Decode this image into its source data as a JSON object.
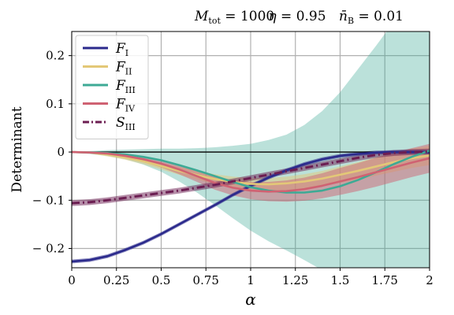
{
  "chart_data": {
    "type": "line",
    "title_parts": {
      "m_sym": "M",
      "m_sub": "tot",
      "m_eq": " = 1000",
      "eta_sym": "η",
      "eta_eq": " = 0.95",
      "n_sym": "n̄",
      "n_sub": "B",
      "n_eq": " = 0.01"
    },
    "xlabel": "α",
    "ylabel": "Determinant",
    "xlim": [
      0,
      2
    ],
    "ylim": [
      -0.24,
      0.25
    ],
    "xticks": [
      {
        "v": 0,
        "label": "0"
      },
      {
        "v": 0.25,
        "label": "0.25"
      },
      {
        "v": 0.5,
        "label": "0.5"
      },
      {
        "v": 0.75,
        "label": "0.75"
      },
      {
        "v": 1,
        "label": "1"
      },
      {
        "v": 1.25,
        "label": "1.25"
      },
      {
        "v": 1.5,
        "label": "1.5"
      },
      {
        "v": 1.75,
        "label": "1.75"
      },
      {
        "v": 2,
        "label": "2"
      }
    ],
    "yticks": [
      {
        "v": -0.2,
        "label": "− 0.2"
      },
      {
        "v": -0.1,
        "label": "− 0.1"
      },
      {
        "v": 0,
        "label": "0"
      },
      {
        "v": 0.1,
        "label": "0.1"
      },
      {
        "v": 0.2,
        "label": "0.2"
      }
    ],
    "grid": true,
    "zero_line": true,
    "legend_position": "top-left",
    "x": [
      0,
      0.1,
      0.2,
      0.3,
      0.4,
      0.5,
      0.6,
      0.7,
      0.8,
      0.9,
      1.0,
      1.1,
      1.2,
      1.3,
      1.4,
      1.5,
      1.6,
      1.7,
      1.8,
      1.9,
      2.0
    ],
    "series": [
      {
        "sym": "F",
        "sub": "I",
        "color": "#2b2a8c",
        "dash": "solid",
        "values": [
          -0.227,
          -0.224,
          -0.216,
          -0.203,
          -0.188,
          -0.17,
          -0.15,
          -0.13,
          -0.11,
          -0.089,
          -0.07,
          -0.053,
          -0.038,
          -0.025,
          -0.015,
          -0.008,
          -0.004,
          -0.001,
          0.0,
          0.0,
          0.0
        ],
        "band": 0.004
      },
      {
        "sym": "F",
        "sub": "II",
        "color": "#e3c877",
        "dash": "solid",
        "values": [
          0.0,
          -0.001,
          -0.005,
          -0.011,
          -0.019,
          -0.029,
          -0.039,
          -0.048,
          -0.056,
          -0.062,
          -0.066,
          -0.067,
          -0.065,
          -0.061,
          -0.055,
          -0.047,
          -0.039,
          -0.03,
          -0.021,
          -0.013,
          -0.007
        ],
        "band": [
          0.001,
          0.002,
          0.004,
          0.005,
          0.006,
          0.007,
          0.008,
          0.009,
          0.01,
          0.011,
          0.012,
          0.013,
          0.014,
          0.015,
          0.016,
          0.017,
          0.018,
          0.019,
          0.02,
          0.02,
          0.02
        ]
      },
      {
        "sym": "F",
        "sub": "III",
        "color": "#3daa95",
        "dash": "solid",
        "values": [
          0.0,
          -0.001,
          -0.002,
          -0.005,
          -0.01,
          -0.017,
          -0.027,
          -0.038,
          -0.05,
          -0.062,
          -0.073,
          -0.08,
          -0.084,
          -0.084,
          -0.08,
          -0.071,
          -0.058,
          -0.042,
          -0.025,
          -0.01,
          0.003
        ],
        "band": [
          0.0,
          0.003,
          0.006,
          0.01,
          0.016,
          0.024,
          0.034,
          0.046,
          0.06,
          0.075,
          0.09,
          0.105,
          0.12,
          0.14,
          0.165,
          0.195,
          0.23,
          0.262,
          0.295,
          0.32,
          0.33
        ]
      },
      {
        "sym": "F",
        "sub": "IV",
        "color": "#cf6272",
        "dash": "solid",
        "values": [
          0.0,
          -0.001,
          -0.003,
          -0.008,
          -0.015,
          -0.024,
          -0.036,
          -0.05,
          -0.064,
          -0.074,
          -0.08,
          -0.082,
          -0.081,
          -0.077,
          -0.07,
          -0.061,
          -0.052,
          -0.042,
          -0.032,
          -0.022,
          -0.013
        ],
        "band": [
          0.001,
          0.002,
          0.003,
          0.005,
          0.006,
          0.008,
          0.01,
          0.012,
          0.014,
          0.016,
          0.018,
          0.02,
          0.022,
          0.024,
          0.026,
          0.028,
          0.029,
          0.03,
          0.03,
          0.03,
          0.03
        ]
      },
      {
        "sym": "S",
        "sub": "III",
        "color": "#6c1e52",
        "dash": "dashdot",
        "values": [
          -0.106,
          -0.104,
          -0.1,
          -0.095,
          -0.09,
          -0.085,
          -0.08,
          -0.074,
          -0.068,
          -0.061,
          -0.054,
          -0.047,
          -0.04,
          -0.033,
          -0.026,
          -0.019,
          -0.012,
          -0.006,
          -0.002,
          0.0,
          0.001
        ],
        "band": 0.006
      }
    ]
  }
}
